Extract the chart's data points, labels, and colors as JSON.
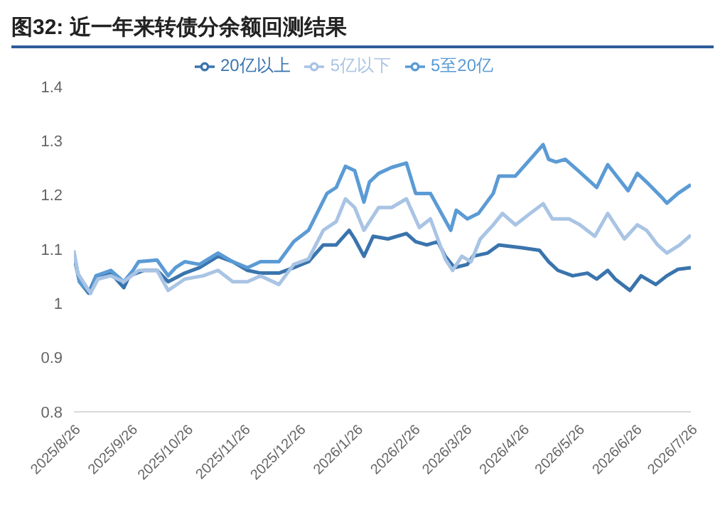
{
  "chart_data": {
    "type": "line",
    "title": "图32: 近一年来转债分余额回测结果",
    "legend": "top",
    "grid": false,
    "marker": "none",
    "line_style": "solid",
    "ylim": [
      0.8,
      1.4
    ],
    "yticks": [
      0.8,
      0.9,
      1,
      1.1,
      1.2,
      1.3,
      1.4
    ],
    "xlim": [
      "2025-08-26",
      "2026-07-26"
    ],
    "xticks": [
      {
        "value": "2025-08-26",
        "label": "2025/8/26"
      },
      {
        "value": "2025-09-26",
        "label": "2025/9/26"
      },
      {
        "value": "2025-10-26",
        "label": "2025/10/26"
      },
      {
        "value": "2025-11-26",
        "label": "2025/11/26"
      },
      {
        "value": "2025-12-26",
        "label": "2025/12/26"
      },
      {
        "value": "2026-01-26",
        "label": "2026/1/26"
      },
      {
        "value": "2026-02-26",
        "label": "2026/2/26"
      },
      {
        "value": "2026-03-26",
        "label": "2026/3/26"
      },
      {
        "value": "2026-04-26",
        "label": "2026/4/26"
      },
      {
        "value": "2026-05-26",
        "label": "2026/5/26"
      },
      {
        "value": "2026-06-26",
        "label": "2026/6/26"
      },
      {
        "value": "2026-07-26",
        "label": "2026/7/26"
      }
    ],
    "series": [
      {
        "name": "20亿以上",
        "color": "#3a74ad",
        "x": [
          "2025-08-26",
          "2025-08-29",
          "2025-09-03",
          "2025-09-07",
          "2025-09-15",
          "2025-09-22",
          "2025-09-25",
          "2025-10-03",
          "2025-10-10",
          "2025-10-16",
          "2025-10-25",
          "2025-11-02",
          "2025-11-12",
          "2025-11-20",
          "2025-11-28",
          "2025-12-05",
          "2025-12-15",
          "2025-12-23",
          "2025-12-31",
          "2026-01-08",
          "2026-01-15",
          "2026-01-22",
          "2026-01-25",
          "2026-01-30",
          "2026-02-04",
          "2026-02-12",
          "2026-02-22",
          "2026-02-27",
          "2026-03-05",
          "2026-03-11",
          "2026-03-15",
          "2026-03-20",
          "2026-03-27",
          "2026-03-30",
          "2026-04-07",
          "2026-04-13",
          "2026-04-25",
          "2026-05-05",
          "2026-05-10",
          "2026-05-15",
          "2026-05-23",
          "2026-05-31",
          "2026-06-05",
          "2026-06-11",
          "2026-06-15",
          "2026-06-23",
          "2026-06-29",
          "2026-07-07",
          "2026-07-13",
          "2026-07-19",
          "2026-07-26"
        ],
        "values": [
          1.087,
          1.04,
          1.019,
          1.051,
          1.056,
          1.029,
          1.051,
          1.061,
          1.061,
          1.04,
          1.056,
          1.066,
          1.087,
          1.077,
          1.061,
          1.056,
          1.056,
          1.066,
          1.077,
          1.108,
          1.108,
          1.135,
          1.119,
          1.087,
          1.124,
          1.119,
          1.129,
          1.114,
          1.108,
          1.114,
          1.087,
          1.066,
          1.072,
          1.087,
          1.093,
          1.108,
          1.103,
          1.098,
          1.077,
          1.061,
          1.051,
          1.056,
          1.045,
          1.061,
          1.045,
          1.024,
          1.051,
          1.035,
          1.051,
          1.063,
          1.066
        ]
      },
      {
        "name": "5至20亿",
        "color": "#5b9bd5",
        "x": [
          "2025-08-26",
          "2025-08-29",
          "2025-09-04",
          "2025-09-07",
          "2025-09-15",
          "2025-09-22",
          "2025-09-27",
          "2025-09-30",
          "2025-10-10",
          "2025-10-16",
          "2025-10-20",
          "2025-10-25",
          "2025-11-02",
          "2025-11-12",
          "2025-11-20",
          "2025-11-28",
          "2025-12-05",
          "2025-12-15",
          "2025-12-23",
          "2025-12-31",
          "2026-01-10",
          "2026-01-15",
          "2026-01-20",
          "2026-01-25",
          "2026-01-30",
          "2026-02-02",
          "2026-02-07",
          "2026-02-14",
          "2026-02-22",
          "2026-02-27",
          "2026-03-07",
          "2026-03-18",
          "2026-03-21",
          "2026-03-27",
          "2026-04-02",
          "2026-04-10",
          "2026-04-13",
          "2026-04-22",
          "2026-04-30",
          "2026-05-07",
          "2026-05-10",
          "2026-05-14",
          "2026-05-19",
          "2026-05-26",
          "2026-06-05",
          "2026-06-11",
          "2026-06-22",
          "2026-06-27",
          "2026-07-02",
          "2026-07-11",
          "2026-07-13",
          "2026-07-19",
          "2026-07-26"
        ],
        "values": [
          1.093,
          1.04,
          1.019,
          1.051,
          1.061,
          1.04,
          1.061,
          1.077,
          1.08,
          1.051,
          1.066,
          1.077,
          1.072,
          1.093,
          1.077,
          1.066,
          1.077,
          1.077,
          1.114,
          1.135,
          1.203,
          1.214,
          1.253,
          1.245,
          1.187,
          1.224,
          1.24,
          1.251,
          1.259,
          1.203,
          1.203,
          1.135,
          1.172,
          1.156,
          1.166,
          1.203,
          1.235,
          1.235,
          1.266,
          1.293,
          1.266,
          1.261,
          1.266,
          1.245,
          1.214,
          1.256,
          1.208,
          1.24,
          1.224,
          1.193,
          1.185,
          1.203,
          1.219
        ]
      },
      {
        "name": "5亿以下",
        "color": "#a9c4e4",
        "x": [
          "2025-08-26",
          "2025-08-28",
          "2025-09-04",
          "2025-09-08",
          "2025-09-15",
          "2025-09-22",
          "2025-09-30",
          "2025-10-10",
          "2025-10-16",
          "2025-10-25",
          "2025-11-04",
          "2025-11-12",
          "2025-11-20",
          "2025-11-28",
          "2025-12-05",
          "2025-12-15",
          "2025-12-23",
          "2025-12-31",
          "2026-01-08",
          "2026-01-15",
          "2026-01-20",
          "2026-01-25",
          "2026-01-30",
          "2026-02-07",
          "2026-02-14",
          "2026-02-22",
          "2026-03-01",
          "2026-03-07",
          "2026-03-15",
          "2026-03-19",
          "2026-03-24",
          "2026-03-29",
          "2026-04-03",
          "2026-04-10",
          "2026-04-15",
          "2026-04-22",
          "2026-04-30",
          "2026-05-07",
          "2026-05-12",
          "2026-05-21",
          "2026-05-27",
          "2026-06-04",
          "2026-06-11",
          "2026-06-20",
          "2026-06-27",
          "2026-07-02",
          "2026-07-08",
          "2026-07-13",
          "2026-07-20",
          "2026-07-26"
        ],
        "values": [
          1.098,
          1.056,
          1.019,
          1.045,
          1.051,
          1.04,
          1.061,
          1.061,
          1.024,
          1.045,
          1.051,
          1.061,
          1.04,
          1.04,
          1.051,
          1.035,
          1.072,
          1.082,
          1.135,
          1.151,
          1.193,
          1.177,
          1.135,
          1.177,
          1.177,
          1.193,
          1.14,
          1.156,
          1.082,
          1.061,
          1.087,
          1.077,
          1.119,
          1.145,
          1.166,
          1.145,
          1.166,
          1.184,
          1.156,
          1.156,
          1.145,
          1.124,
          1.166,
          1.119,
          1.145,
          1.135,
          1.108,
          1.093,
          1.108,
          1.126
        ]
      }
    ]
  }
}
